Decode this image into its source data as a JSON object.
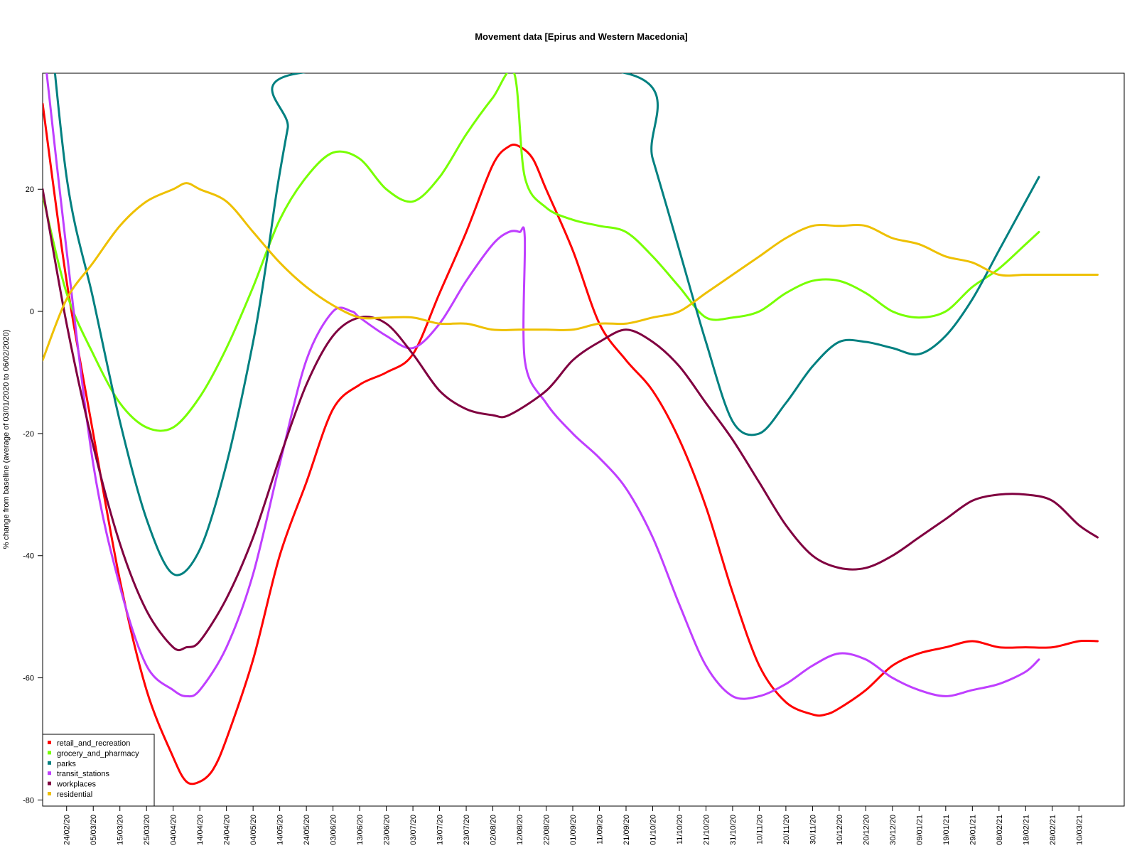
{
  "chart_data": {
    "type": "line",
    "title": "Movement data [Epirus and Western Macedonia]",
    "xlabel": "",
    "ylabel": "% change from baseline (average of 03/01/2020 to 06/02/2020)",
    "ylim": [
      -81,
      39
    ],
    "y_ticks": [
      20,
      0,
      -20,
      -40,
      -60,
      -80
    ],
    "x_ticks": [
      "24/02/20",
      "05/03/20",
      "15/03/20",
      "25/03/20",
      "04/04/20",
      "14/04/20",
      "24/04/20",
      "04/05/20",
      "14/05/20",
      "24/05/20",
      "03/06/20",
      "13/06/20",
      "23/06/20",
      "03/07/20",
      "13/07/20",
      "23/07/20",
      "02/08/20",
      "12/08/20",
      "22/08/20",
      "01/09/20",
      "11/09/20",
      "21/09/20",
      "01/10/20",
      "11/10/20",
      "21/10/20",
      "31/10/20",
      "10/11/20",
      "20/11/20",
      "30/11/20",
      "10/12/20",
      "20/12/20",
      "30/12/20",
      "09/01/21",
      "19/01/21",
      "29/01/21",
      "08/02/21",
      "18/02/21",
      "28/02/21",
      "10/03/21"
    ],
    "x_start": "15/02/20",
    "x_end": "27/03/21",
    "grid": false,
    "legend_position": "bottom-left",
    "series": [
      {
        "name": "retail_and_recreation",
        "color": "#FF0000",
        "x": [
          "15/02/20",
          "24/02/20",
          "05/03/20",
          "15/03/20",
          "25/03/20",
          "04/04/20",
          "09/04/20",
          "14/04/20",
          "19/04/20",
          "24/04/20",
          "04/05/20",
          "14/05/20",
          "24/05/20",
          "03/06/20",
          "13/06/20",
          "23/06/20",
          "03/07/20",
          "13/07/20",
          "23/07/20",
          "02/08/20",
          "08/08/20",
          "12/08/20",
          "17/08/20",
          "22/08/20",
          "01/09/20",
          "11/09/20",
          "21/09/20",
          "01/10/20",
          "11/10/20",
          "21/10/20",
          "31/10/20",
          "10/11/20",
          "20/11/20",
          "30/11/20",
          "05/12/20",
          "10/12/20",
          "20/12/20",
          "30/12/20",
          "09/01/21",
          "19/01/21",
          "29/01/21",
          "08/02/21",
          "18/02/21",
          "28/02/21",
          "10/03/21",
          "17/03/21"
        ],
        "values": [
          34,
          5,
          -20,
          -44,
          -62,
          -73,
          -77,
          -77,
          -75,
          -70,
          -57,
          -40,
          -28,
          -16,
          -12,
          -10,
          -7,
          3,
          13,
          24,
          27,
          27,
          25,
          20,
          10,
          -2,
          -8,
          -13,
          -21,
          -32,
          -46,
          -58,
          -64,
          -66,
          -66,
          -65,
          -62,
          -58,
          -56,
          -55,
          -54,
          -55,
          -55,
          -55,
          -54,
          -54
        ]
      },
      {
        "name": "grocery_and_pharmacy",
        "color": "#77FF00",
        "x": [
          "15/02/20",
          "24/02/20",
          "05/03/20",
          "15/03/20",
          "25/03/20",
          "04/04/20",
          "14/04/20",
          "24/04/20",
          "04/05/20",
          "14/05/20",
          "24/05/20",
          "03/06/20",
          "13/06/20",
          "23/06/20",
          "03/07/20",
          "13/07/20",
          "23/07/20",
          "02/08/20",
          "10/08/20",
          "14/08/20",
          "22/08/20",
          "01/09/20",
          "11/09/20",
          "21/09/20",
          "01/10/20",
          "11/10/20",
          "21/10/20",
          "31/10/20",
          "10/11/20",
          "20/11/20",
          "30/11/20",
          "10/12/20",
          "20/12/20",
          "30/12/20",
          "09/01/21",
          "19/01/21",
          "29/01/21",
          "08/02/21",
          "18/02/21",
          "23/02/21"
        ],
        "values": [
          19,
          3,
          -7,
          -15,
          -19,
          -19,
          -14,
          -6,
          4,
          15,
          22,
          26,
          25,
          20,
          18,
          22,
          29,
          35,
          39,
          22,
          17,
          15,
          14,
          13,
          9,
          4,
          -1,
          -1,
          0,
          3,
          5,
          5,
          3,
          0,
          -1,
          0,
          4,
          7,
          11,
          13
        ]
      },
      {
        "name": "parks",
        "color": "#008080",
        "x": [
          "15/02/20",
          "24/02/20",
          "05/03/20",
          "15/03/20",
          "25/03/20",
          "04/04/20",
          "14/04/20",
          "24/04/20",
          "04/05/20",
          "09/05/20",
          "13/05/20",
          "17/05/20",
          "21/05/20",
          "21/09/20",
          "01/10/20",
          "11/10/20",
          "21/10/20",
          "31/10/20",
          "10/11/20",
          "20/11/20",
          "30/11/20",
          "10/12/20",
          "20/12/20",
          "30/12/20",
          "09/01/21",
          "19/01/21",
          "29/01/21",
          "08/02/21",
          "18/02/21",
          "23/02/21"
        ],
        "values": [
          60,
          22,
          2,
          -18,
          -34,
          -43,
          -39,
          -25,
          -5,
          8,
          20,
          30,
          39,
          39,
          25,
          10,
          -5,
          -18,
          -20,
          -15,
          -9,
          -5,
          -5,
          -6,
          -7,
          -4,
          2,
          10,
          18,
          22
        ]
      },
      {
        "name": "transit_stations",
        "color": "#BF3EFF",
        "x": [
          "15/02/20",
          "24/02/20",
          "05/03/20",
          "15/03/20",
          "25/03/20",
          "04/04/20",
          "09/04/20",
          "14/04/20",
          "24/04/20",
          "04/05/20",
          "14/05/20",
          "24/05/20",
          "03/06/20",
          "10/06/20",
          "13/06/20",
          "23/06/20",
          "03/07/20",
          "13/07/20",
          "23/07/20",
          "02/08/20",
          "08/08/20",
          "12/08/20",
          "14/08/20",
          "14/08/20",
          "22/08/20",
          "01/09/20",
          "11/09/20",
          "21/09/20",
          "01/10/20",
          "11/10/20",
          "21/10/20",
          "31/10/20",
          "10/11/20",
          "20/11/20",
          "30/11/20",
          "10/12/20",
          "20/12/20",
          "30/12/20",
          "09/01/21",
          "19/01/21",
          "29/01/21",
          "08/02/21",
          "18/02/21",
          "23/02/21"
        ],
        "values": [
          45,
          10,
          -25,
          -45,
          -58,
          -62,
          -63,
          -62,
          -55,
          -43,
          -25,
          -8,
          0,
          0,
          -1,
          -4,
          -6,
          -2,
          5,
          11,
          13,
          13,
          12,
          -8,
          -15,
          -20,
          -24,
          -29,
          -37,
          -48,
          -58,
          -63,
          -63,
          -61,
          -58,
          -56,
          -57,
          -60,
          -62,
          -63,
          -62,
          -61,
          -59,
          -57
        ]
      },
      {
        "name": "workplaces",
        "color": "#800040",
        "x": [
          "15/02/20",
          "24/02/20",
          "05/03/20",
          "15/03/20",
          "25/03/20",
          "04/04/20",
          "09/04/20",
          "14/04/20",
          "24/04/20",
          "04/05/20",
          "14/05/20",
          "24/05/20",
          "03/06/20",
          "13/06/20",
          "23/06/20",
          "03/07/20",
          "13/07/20",
          "23/07/20",
          "02/08/20",
          "08/08/20",
          "22/08/20",
          "01/09/20",
          "11/09/20",
          "21/09/20",
          "01/10/20",
          "11/10/20",
          "21/10/20",
          "31/10/20",
          "10/11/20",
          "20/11/20",
          "30/11/20",
          "10/12/20",
          "20/12/20",
          "30/12/20",
          "09/01/21",
          "19/01/21",
          "29/01/21",
          "08/02/21",
          "18/02/21",
          "28/02/21",
          "10/03/21",
          "17/03/21"
        ],
        "values": [
          20,
          -2,
          -22,
          -38,
          -49,
          -55,
          -55,
          -54,
          -47,
          -37,
          -24,
          -12,
          -4,
          -1,
          -2,
          -7,
          -13,
          -16,
          -17,
          -17,
          -13,
          -8,
          -5,
          -3,
          -5,
          -9,
          -15,
          -21,
          -28,
          -35,
          -40,
          -42,
          -42,
          -40,
          -37,
          -34,
          -31,
          -30,
          -30,
          -31,
          -35,
          -37
        ]
      },
      {
        "name": "residential",
        "color": "#EEC000",
        "x": [
          "15/02/20",
          "24/02/20",
          "05/03/20",
          "15/03/20",
          "25/03/20",
          "04/04/20",
          "09/04/20",
          "14/04/20",
          "24/04/20",
          "04/05/20",
          "14/05/20",
          "24/05/20",
          "03/06/20",
          "13/06/20",
          "23/06/20",
          "03/07/20",
          "13/07/20",
          "23/07/20",
          "02/08/20",
          "12/08/20",
          "22/08/20",
          "01/09/20",
          "11/09/20",
          "21/09/20",
          "01/10/20",
          "11/10/20",
          "21/10/20",
          "31/10/20",
          "10/11/20",
          "20/11/20",
          "30/11/20",
          "10/12/20",
          "20/12/20",
          "30/12/20",
          "09/01/21",
          "19/01/21",
          "29/01/21",
          "08/02/21",
          "18/02/21",
          "28/02/21",
          "10/03/21",
          "17/03/21"
        ],
        "values": [
          -8,
          2,
          8,
          14,
          18,
          20,
          21,
          20,
          18,
          13,
          8,
          4,
          1,
          -1,
          -1,
          -1,
          -2,
          -2,
          -3,
          -3,
          -3,
          -3,
          -2,
          -2,
          -1,
          0,
          3,
          6,
          9,
          12,
          14,
          14,
          14,
          12,
          11,
          9,
          8,
          6,
          6,
          6,
          6,
          6
        ]
      }
    ]
  }
}
